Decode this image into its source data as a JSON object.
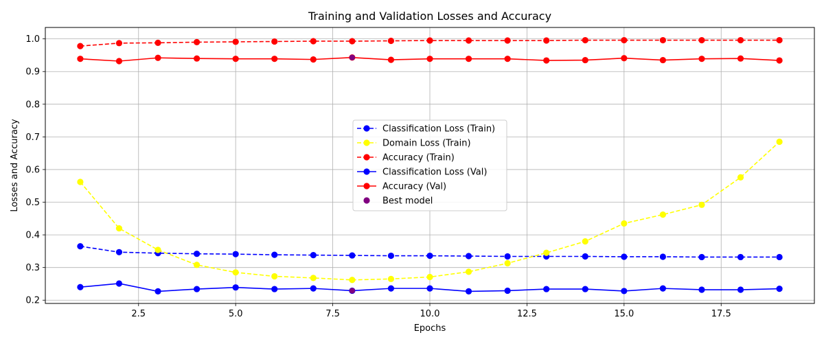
{
  "chart_data": {
    "type": "line",
    "title": "Training and Validation Losses and Accuracy",
    "xlabel": "Epochs",
    "ylabel": "Losses and Accuracy",
    "xlim": [
      0.1,
      19.9
    ],
    "ylim": [
      0.19,
      1.035
    ],
    "grid": true,
    "legend_position": "center",
    "x_ticks": [
      2.5,
      5.0,
      7.5,
      10.0,
      12.5,
      15.0,
      17.5
    ],
    "x_tick_labels": [
      "2.5",
      "5.0",
      "7.5",
      "10.0",
      "12.5",
      "15.0",
      "17.5"
    ],
    "y_ticks": [
      0.2,
      0.3,
      0.4,
      0.5,
      0.6,
      0.7,
      0.8,
      0.9,
      1.0
    ],
    "y_tick_labels": [
      "0.2",
      "0.3",
      "0.4",
      "0.5",
      "0.6",
      "0.7",
      "0.8",
      "0.9",
      "1.0"
    ],
    "x": [
      1,
      2,
      3,
      4,
      5,
      6,
      7,
      8,
      9,
      10,
      11,
      12,
      13,
      14,
      15,
      16,
      17,
      18,
      19
    ],
    "series": [
      {
        "name": "Classification Loss (Train)",
        "color": "#0000ff",
        "dashed": true,
        "values": [
          0.365,
          0.347,
          0.344,
          0.342,
          0.341,
          0.339,
          0.338,
          0.337,
          0.336,
          0.336,
          0.335,
          0.334,
          0.334,
          0.334,
          0.333,
          0.333,
          0.332,
          0.332,
          0.332
        ]
      },
      {
        "name": "Domain Loss (Train)",
        "color": "#ffff00",
        "dashed": true,
        "values": [
          0.562,
          0.42,
          0.354,
          0.308,
          0.285,
          0.273,
          0.268,
          0.262,
          0.265,
          0.271,
          0.287,
          0.313,
          0.345,
          0.38,
          0.435,
          0.462,
          0.492,
          0.576,
          0.685
        ]
      },
      {
        "name": "Accuracy (Train)",
        "color": "#ff0000",
        "dashed": true,
        "values": [
          0.978,
          0.987,
          0.988,
          0.99,
          0.991,
          0.992,
          0.993,
          0.993,
          0.994,
          0.995,
          0.995,
          0.995,
          0.995,
          0.996,
          0.996,
          0.996,
          0.996,
          0.996,
          0.996
        ]
      },
      {
        "name": "Classification Loss (Val)",
        "color": "#0000ff",
        "dashed": false,
        "values": [
          0.24,
          0.251,
          0.227,
          0.234,
          0.239,
          0.234,
          0.236,
          0.229,
          0.236,
          0.236,
          0.227,
          0.229,
          0.234,
          0.234,
          0.228,
          0.236,
          0.232,
          0.232,
          0.235
        ]
      },
      {
        "name": "Accuracy (Val)",
        "color": "#ff0000",
        "dashed": false,
        "values": [
          0.939,
          0.932,
          0.942,
          0.94,
          0.939,
          0.939,
          0.937,
          0.943,
          0.936,
          0.939,
          0.939,
          0.939,
          0.934,
          0.935,
          0.941,
          0.935,
          0.939,
          0.94,
          0.934
        ]
      }
    ],
    "best_model": {
      "name": "Best model",
      "color": "#800080",
      "points": [
        {
          "x": 8,
          "y": 0.943
        },
        {
          "x": 8,
          "y": 0.229
        }
      ]
    }
  }
}
